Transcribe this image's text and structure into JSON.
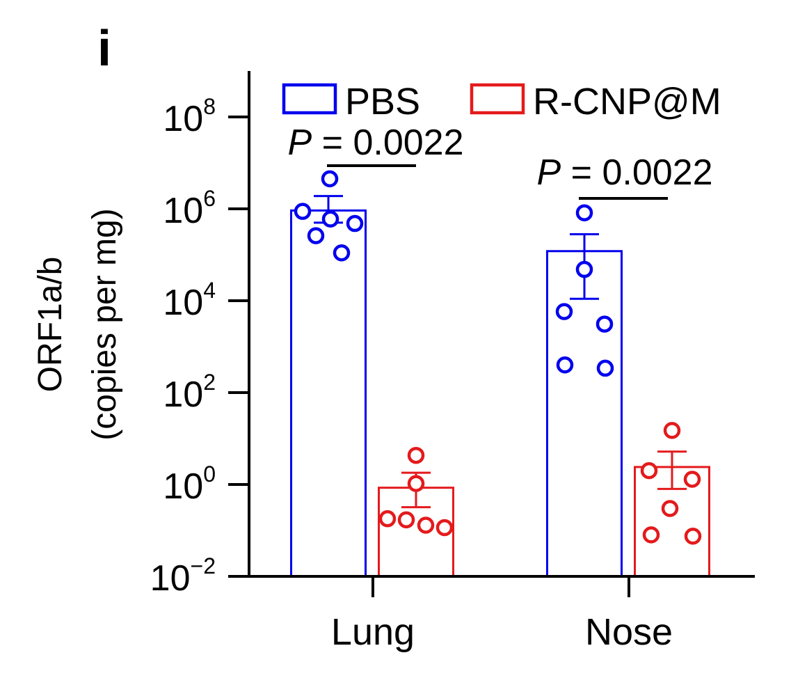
{
  "panel_label": "i",
  "chart_data": {
    "type": "bar",
    "scale": "log10",
    "ylabel_line1": "ORF1a/b",
    "ylabel_line2": "(copies per mg)",
    "categories": [
      "Lung",
      "Nose"
    ],
    "ylim": [
      0.01,
      1000000000
    ],
    "yticks": [
      {
        "value": 100000000,
        "base": "10",
        "exp": "8"
      },
      {
        "value": 1000000,
        "base": "10",
        "exp": "6"
      },
      {
        "value": 10000,
        "base": "10",
        "exp": "4"
      },
      {
        "value": 100,
        "base": "10",
        "exp": "2"
      },
      {
        "value": 1,
        "base": "10",
        "exp": "0"
      },
      {
        "value": 0.01,
        "base": "10",
        "exp": "−2"
      }
    ],
    "legend_position": "top",
    "series": [
      {
        "name": "PBS",
        "color": "#0000ee",
        "values": [
          920000,
          120000
        ],
        "err_upper": [
          1900000,
          280000
        ],
        "err_lower": [
          500000,
          11000
        ],
        "points": [
          [
            4500000,
            880000,
            600000,
            480000,
            260000,
            110000
          ],
          [
            820000,
            48000,
            5800,
            3100,
            400,
            340
          ]
        ]
      },
      {
        "name": "R-CNP@M",
        "color": "#e41a1c",
        "values": [
          0.85,
          2.4
        ],
        "err_upper": [
          1.8,
          5.2
        ],
        "err_lower": [
          0.32,
          0.8
        ],
        "points": [
          [
            4.3,
            1.05,
            0.18,
            0.17,
            0.13,
            0.115
          ],
          [
            15,
            2.0,
            1.3,
            0.3,
            0.08,
            0.075
          ]
        ]
      }
    ],
    "annotations": [
      {
        "category": "Lung",
        "text": "P = 0.0022"
      },
      {
        "category": "Nose",
        "text": "P = 0.0022"
      }
    ]
  }
}
